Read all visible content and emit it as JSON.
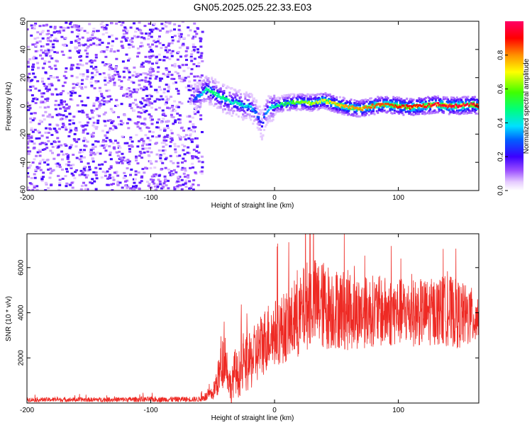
{
  "title": "GN05.2025.025.22.33.E03",
  "chart_data": [
    {
      "type": "heatmap",
      "xlabel": "Height of straight line (km)",
      "ylabel": "Frequency (Hz)",
      "xlim": [
        -200,
        165
      ],
      "ylim": [
        -60,
        60
      ],
      "xticks": [
        "-200",
        "-100",
        "0",
        "100"
      ],
      "yticks": [
        "-60",
        "-40",
        "-20",
        "0",
        "20",
        "40",
        "60"
      ],
      "colorbar": {
        "label": "Normalized spectral amplitude",
        "ticks": [
          "0.0",
          "0.2",
          "0.4",
          "0.6",
          "0.8"
        ],
        "range": [
          0,
          1
        ]
      },
      "noise_region_x": [
        -200,
        -58
      ],
      "ridge": {
        "x": [
          -65,
          -60,
          -55,
          -50,
          -45,
          -40,
          -35,
          -30,
          -25,
          -20,
          -15,
          -12,
          -10,
          -8,
          -5,
          0,
          10,
          20,
          30,
          40,
          50,
          60,
          70,
          80,
          90,
          100,
          110,
          120,
          130,
          140,
          150,
          160,
          165
        ],
        "y": [
          5,
          8,
          12,
          10,
          7,
          5,
          3,
          2,
          0,
          0,
          -5,
          -10,
          -15,
          -6,
          -2,
          0,
          2,
          3,
          2,
          4,
          1,
          -1,
          -2,
          0,
          1,
          0,
          -1,
          0,
          1,
          0,
          0,
          1,
          0
        ],
        "amplitude": [
          0.25,
          0.35,
          0.45,
          0.5,
          0.45,
          0.5,
          0.4,
          0.45,
          0.4,
          0.4,
          0.3,
          0.25,
          0.2,
          0.3,
          0.35,
          0.45,
          0.55,
          0.6,
          0.65,
          0.7,
          0.75,
          0.8,
          0.8,
          0.85,
          0.85,
          0.9,
          0.9,
          0.9,
          0.95,
          0.95,
          0.95,
          0.95,
          0.9
        ]
      },
      "grid": false
    },
    {
      "type": "line",
      "xlabel": "Height of straight line (km)",
      "ylabel": "SNR (10 * v/v)",
      "xlim": [
        -200,
        165
      ],
      "ylim": [
        0,
        7500
      ],
      "xticks": [
        "-200",
        "-100",
        "0",
        "100"
      ],
      "yticks": [
        "2000",
        "4000",
        "6000"
      ],
      "series": [
        {
          "color": "#ee2a24",
          "x": [
            -200,
            -150,
            -100,
            -60,
            -50,
            -45,
            -42,
            -40,
            -38,
            -35,
            -32,
            -30,
            -25,
            -20,
            -15,
            -10,
            -5,
            0,
            10,
            20,
            25,
            30,
            40,
            50,
            60,
            70,
            80,
            90,
            100,
            110,
            120,
            130,
            140,
            150,
            160,
            165
          ],
          "y": [
            150,
            150,
            160,
            170,
            400,
            1200,
            1800,
            2200,
            1400,
            600,
            1500,
            1200,
            1600,
            1800,
            2200,
            2600,
            3000,
            3100,
            3400,
            3700,
            4300,
            4500,
            4300,
            4200,
            4100,
            4000,
            4100,
            4000,
            4050,
            4000,
            4000,
            4050,
            4100,
            3900,
            3800,
            3800
          ],
          "spread": [
            100,
            100,
            120,
            120,
            300,
            900,
            1200,
            1200,
            900,
            700,
            1000,
            1000,
            1200,
            1300,
            1400,
            1500,
            1500,
            1500,
            1600,
            1800,
            2000,
            2000,
            2000,
            1800,
            1800,
            1600,
            1600,
            1600,
            1500,
            1500,
            1500,
            1500,
            1600,
            1500,
            1300,
            1200
          ]
        }
      ],
      "grid": false
    }
  ]
}
